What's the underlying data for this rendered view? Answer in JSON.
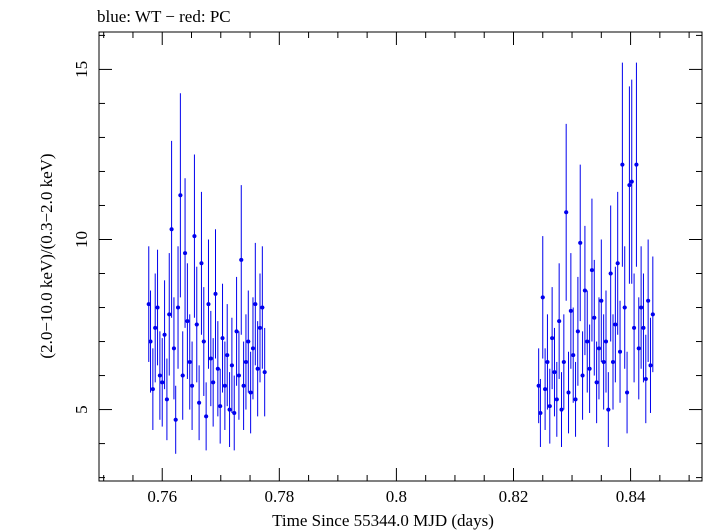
{
  "chart_data": {
    "type": "scatter",
    "title": "blue: WT − red: PC",
    "xlabel": "Time Since 55344.0 MJD (days)",
    "ylabel": "(2.0−10.0 keV)/(0.3−2.0 keV)",
    "xlim": [
      0.7492,
      0.8522
    ],
    "ylim": [
      2.9,
      16.1
    ],
    "xticks": [
      0.76,
      0.78,
      0.8,
      0.82,
      0.84
    ],
    "xtick_labels": [
      "0.76",
      "0.78",
      "0.8",
      "0.82",
      "0.84"
    ],
    "yticks": [
      5,
      10,
      15
    ],
    "ytick_labels": [
      "5",
      "10",
      "15"
    ],
    "grid": false,
    "series": [
      {
        "color": "#0000ee",
        "points": [
          {
            "x": 0.7577,
            "y": 8.1,
            "err": 1.7
          },
          {
            "x": 0.758,
            "y": 7.0,
            "err": 1.5
          },
          {
            "x": 0.7584,
            "y": 5.6,
            "err": 1.2
          },
          {
            "x": 0.7588,
            "y": 7.4,
            "err": 1.6
          },
          {
            "x": 0.7592,
            "y": 8.0,
            "err": 1.7
          },
          {
            "x": 0.7596,
            "y": 6.0,
            "err": 1.3
          },
          {
            "x": 0.76,
            "y": 5.8,
            "err": 1.3
          },
          {
            "x": 0.7604,
            "y": 7.2,
            "err": 1.6
          },
          {
            "x": 0.7608,
            "y": 5.3,
            "err": 1.2
          },
          {
            "x": 0.7612,
            "y": 7.8,
            "err": 1.8
          },
          {
            "x": 0.7616,
            "y": 10.3,
            "err": 2.6
          },
          {
            "x": 0.762,
            "y": 6.8,
            "err": 1.5
          },
          {
            "x": 0.7623,
            "y": 4.7,
            "err": 1.0
          },
          {
            "x": 0.7627,
            "y": 8.0,
            "err": 1.8
          },
          {
            "x": 0.7631,
            "y": 11.3,
            "err": 3.0
          },
          {
            "x": 0.7635,
            "y": 6.0,
            "err": 1.3
          },
          {
            "x": 0.7639,
            "y": 9.6,
            "err": 2.2
          },
          {
            "x": 0.7643,
            "y": 7.6,
            "err": 1.7
          },
          {
            "x": 0.7647,
            "y": 6.4,
            "err": 1.4
          },
          {
            "x": 0.7651,
            "y": 5.7,
            "err": 1.3
          },
          {
            "x": 0.7655,
            "y": 10.1,
            "err": 2.4
          },
          {
            "x": 0.7659,
            "y": 7.5,
            "err": 1.7
          },
          {
            "x": 0.7663,
            "y": 5.2,
            "err": 1.1
          },
          {
            "x": 0.7667,
            "y": 9.3,
            "err": 2.1
          },
          {
            "x": 0.7671,
            "y": 7.0,
            "err": 1.6
          },
          {
            "x": 0.7675,
            "y": 4.8,
            "err": 1.0
          },
          {
            "x": 0.7679,
            "y": 8.1,
            "err": 1.9
          },
          {
            "x": 0.7683,
            "y": 6.5,
            "err": 1.4
          },
          {
            "x": 0.7687,
            "y": 5.8,
            "err": 1.3
          },
          {
            "x": 0.7691,
            "y": 8.4,
            "err": 1.9
          },
          {
            "x": 0.7695,
            "y": 6.2,
            "err": 1.4
          },
          {
            "x": 0.7699,
            "y": 5.1,
            "err": 1.1
          },
          {
            "x": 0.7703,
            "y": 7.1,
            "err": 1.6
          },
          {
            "x": 0.7707,
            "y": 5.7,
            "err": 1.3
          },
          {
            "x": 0.7711,
            "y": 6.6,
            "err": 1.5
          },
          {
            "x": 0.7715,
            "y": 5.0,
            "err": 1.1
          },
          {
            "x": 0.7719,
            "y": 6.3,
            "err": 1.4
          },
          {
            "x": 0.7723,
            "y": 4.9,
            "err": 1.1
          },
          {
            "x": 0.7727,
            "y": 7.3,
            "err": 1.6
          },
          {
            "x": 0.7731,
            "y": 6.0,
            "err": 1.3
          },
          {
            "x": 0.7735,
            "y": 9.4,
            "err": 2.2
          },
          {
            "x": 0.7739,
            "y": 5.7,
            "err": 1.3
          },
          {
            "x": 0.7743,
            "y": 6.4,
            "err": 1.4
          },
          {
            "x": 0.7747,
            "y": 7.0,
            "err": 1.5
          },
          {
            "x": 0.7751,
            "y": 5.5,
            "err": 1.2
          },
          {
            "x": 0.7755,
            "y": 6.8,
            "err": 1.5
          },
          {
            "x": 0.7759,
            "y": 8.1,
            "err": 1.8
          },
          {
            "x": 0.7763,
            "y": 6.2,
            "err": 1.4
          },
          {
            "x": 0.7767,
            "y": 7.4,
            "err": 1.6
          },
          {
            "x": 0.7771,
            "y": 8.0,
            "err": 1.8
          },
          {
            "x": 0.7775,
            "y": 6.1,
            "err": 1.3
          },
          {
            "x": 0.8243,
            "y": 5.7,
            "err": 1.1
          },
          {
            "x": 0.8246,
            "y": 4.9,
            "err": 1.0
          },
          {
            "x": 0.825,
            "y": 8.3,
            "err": 1.8
          },
          {
            "x": 0.8254,
            "y": 5.6,
            "err": 1.2
          },
          {
            "x": 0.8258,
            "y": 6.4,
            "err": 1.4
          },
          {
            "x": 0.8262,
            "y": 5.1,
            "err": 1.1
          },
          {
            "x": 0.8266,
            "y": 7.1,
            "err": 1.5
          },
          {
            "x": 0.827,
            "y": 6.1,
            "err": 1.3
          },
          {
            "x": 0.8274,
            "y": 5.3,
            "err": 1.1
          },
          {
            "x": 0.8278,
            "y": 7.6,
            "err": 1.7
          },
          {
            "x": 0.8282,
            "y": 5.0,
            "err": 1.1
          },
          {
            "x": 0.8286,
            "y": 6.4,
            "err": 1.4
          },
          {
            "x": 0.829,
            "y": 10.8,
            "err": 2.6
          },
          {
            "x": 0.8294,
            "y": 5.5,
            "err": 1.2
          },
          {
            "x": 0.8298,
            "y": 7.9,
            "err": 1.7
          },
          {
            "x": 0.8302,
            "y": 6.6,
            "err": 1.4
          },
          {
            "x": 0.8306,
            "y": 5.3,
            "err": 1.1
          },
          {
            "x": 0.831,
            "y": 7.3,
            "err": 1.6
          },
          {
            "x": 0.8314,
            "y": 9.9,
            "err": 2.3
          },
          {
            "x": 0.8318,
            "y": 6.0,
            "err": 1.3
          },
          {
            "x": 0.8322,
            "y": 8.5,
            "err": 1.9
          },
          {
            "x": 0.8326,
            "y": 7.0,
            "err": 1.5
          },
          {
            "x": 0.833,
            "y": 6.2,
            "err": 1.3
          },
          {
            "x": 0.8334,
            "y": 9.1,
            "err": 2.1
          },
          {
            "x": 0.8338,
            "y": 7.7,
            "err": 1.7
          },
          {
            "x": 0.8342,
            "y": 5.8,
            "err": 1.2
          },
          {
            "x": 0.8346,
            "y": 6.8,
            "err": 1.5
          },
          {
            "x": 0.835,
            "y": 8.2,
            "err": 1.8
          },
          {
            "x": 0.8354,
            "y": 6.4,
            "err": 1.4
          },
          {
            "x": 0.8358,
            "y": 7.0,
            "err": 1.5
          },
          {
            "x": 0.8362,
            "y": 5.0,
            "err": 1.1
          },
          {
            "x": 0.8366,
            "y": 9.0,
            "err": 2.0
          },
          {
            "x": 0.837,
            "y": 6.4,
            "err": 1.4
          },
          {
            "x": 0.8374,
            "y": 7.5,
            "err": 1.7
          },
          {
            "x": 0.8378,
            "y": 9.3,
            "err": 2.1
          },
          {
            "x": 0.8382,
            "y": 6.7,
            "err": 1.5
          },
          {
            "x": 0.8386,
            "y": 12.2,
            "err": 3.0
          },
          {
            "x": 0.839,
            "y": 8.0,
            "err": 1.8
          },
          {
            "x": 0.8394,
            "y": 5.5,
            "err": 1.2
          },
          {
            "x": 0.8398,
            "y": 11.6,
            "err": 2.9
          },
          {
            "x": 0.8402,
            "y": 11.7,
            "err": 3.0
          },
          {
            "x": 0.8406,
            "y": 7.4,
            "err": 1.6
          },
          {
            "x": 0.841,
            "y": 12.2,
            "err": 3.0
          },
          {
            "x": 0.8414,
            "y": 6.8,
            "err": 1.5
          },
          {
            "x": 0.8418,
            "y": 8.0,
            "err": 1.8
          },
          {
            "x": 0.8422,
            "y": 7.4,
            "err": 1.6
          },
          {
            "x": 0.8426,
            "y": 5.9,
            "err": 1.3
          },
          {
            "x": 0.843,
            "y": 8.2,
            "err": 1.8
          },
          {
            "x": 0.8434,
            "y": 6.3,
            "err": 1.4
          },
          {
            "x": 0.8438,
            "y": 7.8,
            "err": 1.7
          }
        ]
      }
    ]
  }
}
